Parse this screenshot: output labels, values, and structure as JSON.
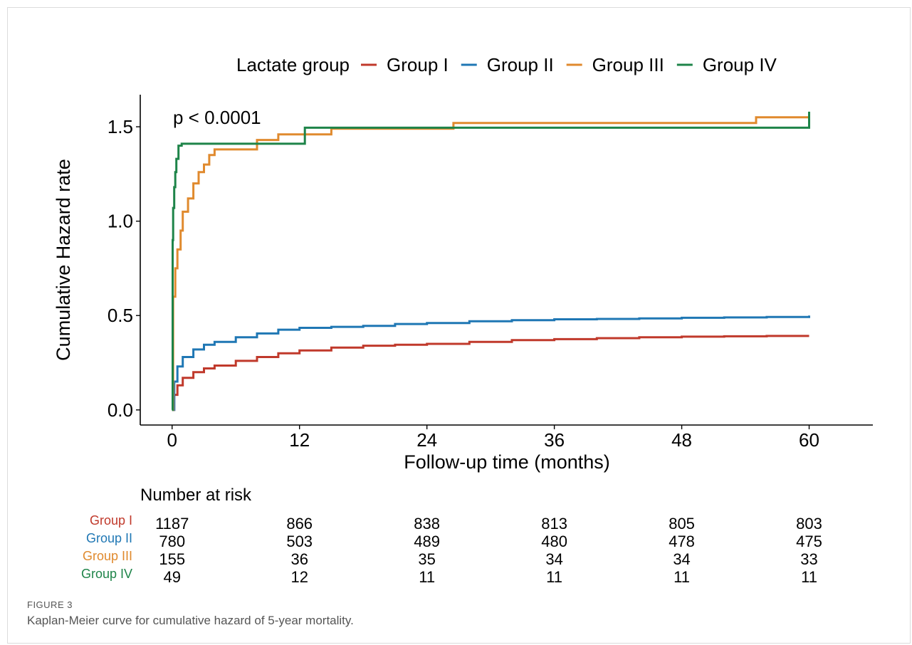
{
  "chart_data": {
    "type": "line",
    "step": true,
    "title": "",
    "xlabel": "Follow-up time (months)",
    "ylabel": "Cumulative Hazard rate",
    "xlim": [
      -3,
      66
    ],
    "ylim": [
      -0.08,
      1.67
    ],
    "xticks": [
      0,
      12,
      24,
      36,
      48,
      60
    ],
    "yticks": [
      0.0,
      0.5,
      1.0,
      1.5
    ],
    "ytick_labels": [
      "0.0",
      "0.5",
      "1.0",
      "1.5"
    ],
    "grid": false,
    "legend_title": "Lactate group",
    "legend_position": "top",
    "annotation": "p < 0.0001",
    "series": [
      {
        "name": "Group I",
        "color": "#c0392b",
        "x": [
          0,
          0.2,
          0.5,
          1,
          2,
          3,
          4,
          6,
          8,
          10,
          12,
          15,
          18,
          21,
          24,
          28,
          32,
          36,
          40,
          44,
          48,
          52,
          56,
          60
        ],
        "y": [
          0,
          0.08,
          0.13,
          0.17,
          0.2,
          0.22,
          0.235,
          0.26,
          0.28,
          0.3,
          0.315,
          0.33,
          0.34,
          0.345,
          0.35,
          0.36,
          0.37,
          0.375,
          0.38,
          0.385,
          0.388,
          0.39,
          0.392,
          0.392
        ]
      },
      {
        "name": "Group II",
        "color": "#1f77b4",
        "x": [
          0,
          0.2,
          0.5,
          1,
          2,
          3,
          4,
          6,
          8,
          10,
          12,
          15,
          18,
          21,
          24,
          28,
          32,
          36,
          40,
          44,
          48,
          52,
          56,
          60
        ],
        "y": [
          0,
          0.15,
          0.23,
          0.28,
          0.32,
          0.345,
          0.36,
          0.385,
          0.405,
          0.425,
          0.435,
          0.44,
          0.445,
          0.455,
          0.46,
          0.47,
          0.475,
          0.48,
          0.482,
          0.485,
          0.488,
          0.49,
          0.492,
          0.5
        ]
      },
      {
        "name": "Group III",
        "color": "#e08a2e",
        "x": [
          0,
          0.1,
          0.3,
          0.5,
          0.8,
          1,
          1.5,
          2,
          2.5,
          3,
          3.5,
          4,
          5,
          8,
          10,
          12.5,
          15,
          26.5,
          55,
          60
        ],
        "y": [
          0,
          0.6,
          0.75,
          0.85,
          0.95,
          1.05,
          1.12,
          1.2,
          1.26,
          1.3,
          1.35,
          1.38,
          1.38,
          1.43,
          1.46,
          1.46,
          1.49,
          1.52,
          1.55,
          1.55
        ]
      },
      {
        "name": "Group IV",
        "color": "#1e8449",
        "x": [
          0,
          0.05,
          0.1,
          0.2,
          0.3,
          0.4,
          0.6,
          0.9,
          12.5,
          60,
          60
        ],
        "y": [
          0,
          0.9,
          1.07,
          1.18,
          1.26,
          1.33,
          1.4,
          1.41,
          1.495,
          1.495,
          1.58
        ]
      }
    ]
  },
  "risk_table": {
    "title": "Number at risk",
    "time_points": [
      0,
      12,
      24,
      36,
      48,
      60
    ],
    "rows": [
      {
        "label": "Group I",
        "color": "#c0392b",
        "values": [
          "1187",
          "866",
          "838",
          "813",
          "805",
          "803"
        ]
      },
      {
        "label": "Group II",
        "color": "#1f77b4",
        "values": [
          "780",
          "503",
          "489",
          "480",
          "478",
          "475"
        ]
      },
      {
        "label": "Group III",
        "color": "#e08a2e",
        "values": [
          "155",
          "36",
          "35",
          "34",
          "34",
          "33"
        ]
      },
      {
        "label": "Group IV",
        "color": "#1e8449",
        "values": [
          "49",
          "12",
          "11",
          "11",
          "11",
          "11"
        ]
      }
    ]
  },
  "caption": {
    "label": "FIGURE 3",
    "text": "Kaplan-Meier curve for cumulative hazard of 5-year mortality."
  }
}
